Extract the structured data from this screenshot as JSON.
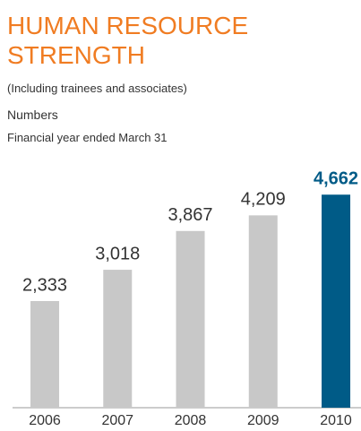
{
  "chart_data": {
    "type": "bar",
    "title": "HUMAN RESOURCE STRENGTH",
    "subtitle": "(Including trainees and associates)",
    "y_label": "Numbers",
    "note": "Financial year ended March 31",
    "categories": [
      "2006",
      "2007",
      "2008",
      "2009",
      "2010"
    ],
    "values": [
      2333,
      3018,
      3867,
      4209,
      4662
    ],
    "value_labels": [
      "2,333",
      "3,018",
      "3,867",
      "4,209",
      "4,662"
    ],
    "colors": [
      "#c8c8c8",
      "#c8c8c8",
      "#c8c8c8",
      "#c8c8c8",
      "#005b87"
    ],
    "value_label_colors": [
      "#333333",
      "#333333",
      "#333333",
      "#333333",
      "#005b87"
    ],
    "ylim": [
      0,
      5000
    ]
  }
}
